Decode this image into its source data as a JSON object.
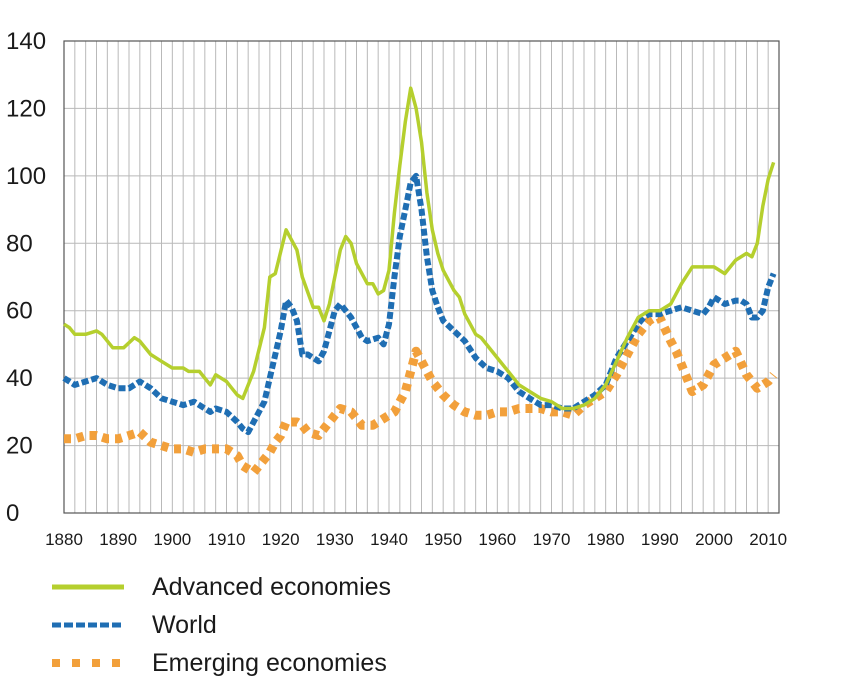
{
  "chart_data": {
    "type": "line",
    "title": "",
    "xlabel": "",
    "ylabel": "",
    "xlim": [
      1880,
      2012
    ],
    "ylim": [
      0,
      140
    ],
    "yticks": [
      0,
      20,
      40,
      60,
      80,
      100,
      120,
      140
    ],
    "xticks": [
      1880,
      1890,
      1900,
      1910,
      1920,
      1930,
      1940,
      1950,
      1960,
      1970,
      1980,
      1990,
      2000,
      2010
    ],
    "grid": true,
    "legend_position": "bottom-left",
    "series": [
      {
        "name": "Advanced economies",
        "color": "#b5cf2e",
        "style": "solid",
        "x": [
          1880,
          1881,
          1882,
          1884,
          1886,
          1887,
          1889,
          1891,
          1893,
          1894,
          1896,
          1898,
          1900,
          1902,
          1903,
          1905,
          1906,
          1907,
          1908,
          1909,
          1910,
          1911,
          1912,
          1913,
          1915,
          1917,
          1918,
          1919,
          1921,
          1922,
          1923,
          1924,
          1926,
          1927,
          1928,
          1929,
          1930,
          1931,
          1932,
          1933,
          1934,
          1935,
          1936,
          1937,
          1938,
          1939,
          1940,
          1941,
          1942,
          1943,
          1944,
          1945,
          1946,
          1947,
          1948,
          1949,
          1950,
          1952,
          1953,
          1954,
          1955,
          1956,
          1957,
          1958,
          1960,
          1962,
          1964,
          1966,
          1968,
          1970,
          1972,
          1974,
          1976,
          1978,
          1980,
          1982,
          1984,
          1986,
          1988,
          1990,
          1992,
          1994,
          1996,
          1998,
          2000,
          2002,
          2004,
          2006,
          2007,
          2008,
          2009,
          2010,
          2011
        ],
        "values": [
          56,
          55,
          53,
          53,
          54,
          53,
          49,
          49,
          52,
          51,
          47,
          45,
          43,
          43,
          42,
          42,
          40,
          38,
          41,
          40,
          39,
          37,
          35,
          34,
          42,
          55,
          70,
          71,
          84,
          81,
          78,
          70,
          61,
          61,
          57,
          62,
          70,
          78,
          82,
          80,
          74,
          71,
          68,
          68,
          65,
          66,
          72,
          89,
          103,
          116,
          126,
          120,
          110,
          95,
          84,
          77,
          72,
          66,
          64,
          59,
          56,
          53,
          52,
          50,
          46,
          42,
          38,
          36,
          34,
          33,
          31,
          31,
          32,
          34,
          38,
          45,
          52,
          58,
          60,
          60,
          62,
          68,
          73,
          73,
          73,
          71,
          75,
          77,
          76,
          80,
          91,
          99,
          104
        ]
      },
      {
        "name": "World",
        "color": "#1f6eb3",
        "style": "dashed",
        "x": [
          1880,
          1882,
          1884,
          1886,
          1888,
          1890,
          1892,
          1894,
          1896,
          1898,
          1900,
          1902,
          1904,
          1906,
          1907,
          1908,
          1910,
          1912,
          1913,
          1914,
          1915,
          1917,
          1918,
          1919,
          1920,
          1921,
          1922,
          1923,
          1924,
          1925,
          1927,
          1928,
          1929,
          1930,
          1931,
          1932,
          1933,
          1934,
          1935,
          1936,
          1938,
          1939,
          1940,
          1941,
          1942,
          1943,
          1944,
          1945,
          1946,
          1947,
          1948,
          1949,
          1950,
          1952,
          1954,
          1956,
          1958,
          1960,
          1962,
          1964,
          1966,
          1968,
          1970,
          1972,
          1974,
          1976,
          1978,
          1980,
          1982,
          1984,
          1986,
          1987,
          1988,
          1990,
          1992,
          1994,
          1996,
          1998,
          1999,
          2000,
          2002,
          2004,
          2005,
          2006,
          2007,
          2008,
          2009,
          2010,
          2011
        ],
        "values": [
          40,
          38,
          39,
          40,
          38,
          37,
          37,
          39,
          37,
          34,
          33,
          32,
          33,
          31,
          30,
          31,
          30,
          27,
          25,
          24,
          27,
          33,
          40,
          47,
          54,
          63,
          61,
          57,
          47,
          47,
          45,
          48,
          54,
          60,
          62,
          60,
          58,
          55,
          52,
          51,
          52,
          50,
          56,
          70,
          82,
          90,
          98,
          100,
          90,
          76,
          66,
          61,
          57,
          54,
          51,
          46,
          43,
          42,
          40,
          36,
          34,
          32,
          32,
          31,
          31,
          33,
          35,
          38,
          46,
          51,
          56,
          58,
          59,
          59,
          60,
          61,
          60,
          59,
          61,
          64,
          62,
          63,
          63,
          62,
          58,
          58,
          60,
          67,
          71
        ]
      },
      {
        "name": "Emerging economies",
        "color": "#f2a03b",
        "style": "dotted",
        "x": [
          1880,
          1882,
          1884,
          1886,
          1888,
          1890,
          1892,
          1894,
          1896,
          1898,
          1900,
          1902,
          1904,
          1906,
          1908,
          1910,
          1912,
          1913,
          1914,
          1915,
          1917,
          1918,
          1919,
          1920,
          1921,
          1923,
          1924,
          1925,
          1927,
          1928,
          1930,
          1931,
          1933,
          1935,
          1937,
          1939,
          1941,
          1943,
          1944,
          1945,
          1946,
          1948,
          1950,
          1952,
          1954,
          1956,
          1958,
          1960,
          1962,
          1964,
          1966,
          1968,
          1970,
          1972,
          1974,
          1976,
          1978,
          1980,
          1982,
          1984,
          1986,
          1988,
          1989,
          1990,
          1992,
          1993,
          1994,
          1995,
          1996,
          1998,
          2000,
          2002,
          2004,
          2006,
          2008,
          2009,
          2010,
          2011
        ],
        "values": [
          22,
          22,
          23,
          23,
          22,
          22,
          23,
          24,
          21,
          20,
          19,
          19,
          18,
          19,
          19,
          19,
          17,
          14,
          13,
          12,
          16,
          18,
          21,
          23,
          27,
          27,
          26,
          24,
          23,
          25,
          29,
          31,
          30,
          26,
          26,
          28,
          30,
          36,
          42,
          48,
          45,
          39,
          35,
          32,
          30,
          29,
          29,
          30,
          30,
          31,
          31,
          31,
          30,
          30,
          29,
          32,
          34,
          36,
          41,
          47,
          53,
          57,
          58,
          58,
          51,
          48,
          44,
          40,
          36,
          38,
          44,
          46,
          48,
          41,
          37,
          38,
          39,
          41
        ]
      }
    ]
  }
}
